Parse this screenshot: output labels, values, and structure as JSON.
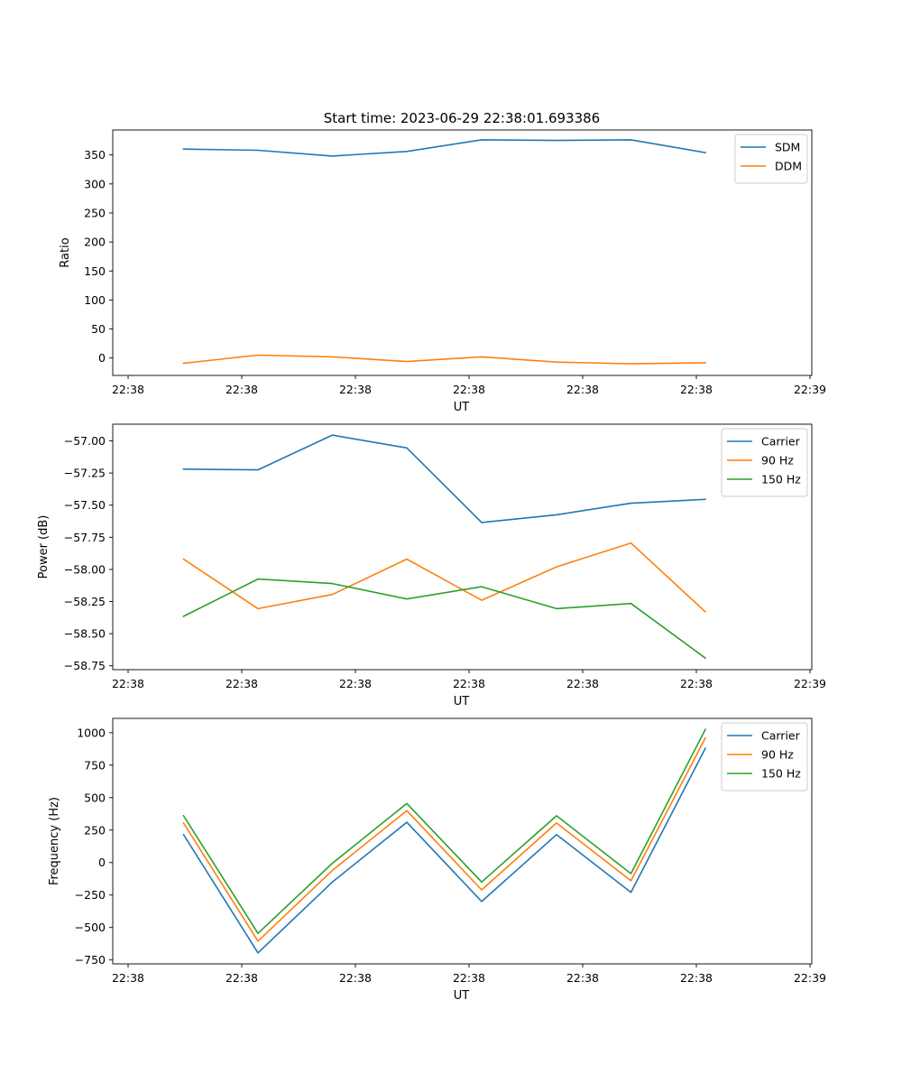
{
  "figure": {
    "title": "Start time: 2023-06-29 22:38:01.693386"
  },
  "chart_data": [
    {
      "type": "line",
      "title": "Start time: 2023-06-29 22:38:01.693386",
      "xlabel": "UT",
      "ylabel": "Ratio",
      "x_tick_labels": [
        "22:38",
        "22:38",
        "22:38",
        "22:38",
        "22:38",
        "22:38",
        "22:39"
      ],
      "ylim": [
        -30,
        393
      ],
      "yticks": [
        0,
        50,
        100,
        150,
        200,
        250,
        300,
        350
      ],
      "ytick_labels": [
        "0",
        "50",
        "100",
        "150",
        "200",
        "250",
        "300",
        "350"
      ],
      "legend_position": "top-right",
      "grid": false,
      "series": [
        {
          "name": "SDM",
          "color": "#1f77b4",
          "values": [
            360,
            358,
            348,
            356,
            376,
            375,
            376,
            354
          ]
        },
        {
          "name": "DDM",
          "color": "#ff7f0e",
          "values": [
            -9,
            5,
            2,
            -6,
            2,
            -7,
            -10,
            -8
          ]
        }
      ]
    },
    {
      "type": "line",
      "xlabel": "UT",
      "ylabel": "Power (dB)",
      "x_tick_labels": [
        "22:38",
        "22:38",
        "22:38",
        "22:38",
        "22:38",
        "22:38",
        "22:39"
      ],
      "ylim": [
        -58.78,
        -56.87
      ],
      "yticks": [
        -58.75,
        -58.5,
        -58.25,
        -58.0,
        -57.75,
        -57.5,
        -57.25,
        -57.0
      ],
      "ytick_labels": [
        "−58.75",
        "−58.50",
        "−58.25",
        "−58.00",
        "−57.75",
        "−57.50",
        "−57.25",
        "−57.00"
      ],
      "legend_position": "top-right",
      "grid": false,
      "series": [
        {
          "name": "Carrier",
          "color": "#1f77b4",
          "values": [
            -57.22,
            -57.225,
            -56.955,
            -57.055,
            -57.635,
            -57.575,
            -57.485,
            -57.455
          ]
        },
        {
          "name": "90 Hz",
          "color": "#ff7f0e",
          "values": [
            -57.92,
            -58.305,
            -58.195,
            -57.92,
            -58.24,
            -57.98,
            -57.795,
            -58.33
          ]
        },
        {
          "name": "150 Hz",
          "color": "#2ca02c",
          "values": [
            -58.365,
            -58.075,
            -58.11,
            -58.23,
            -58.135,
            -58.305,
            -58.265,
            -58.69
          ]
        }
      ]
    },
    {
      "type": "line",
      "xlabel": "UT",
      "ylabel": "Frequency (Hz)",
      "x_tick_labels": [
        "22:38",
        "22:38",
        "22:38",
        "22:38",
        "22:38",
        "22:38",
        "22:39"
      ],
      "ylim": [
        -780,
        1110
      ],
      "yticks": [
        -750,
        -500,
        -250,
        0,
        250,
        500,
        750,
        1000
      ],
      "ytick_labels": [
        "−750",
        "−500",
        "−250",
        "0",
        "250",
        "500",
        "750",
        "1000"
      ],
      "legend_position": "top-right",
      "grid": false,
      "series": [
        {
          "name": "Carrier",
          "color": "#1f77b4",
          "values": [
            215,
            -695,
            -150,
            310,
            -300,
            215,
            -230,
            880
          ]
        },
        {
          "name": "90 Hz",
          "color": "#ff7f0e",
          "values": [
            305,
            -605,
            -60,
            400,
            -210,
            305,
            -140,
            960
          ]
        },
        {
          "name": "150 Hz",
          "color": "#2ca02c",
          "values": [
            360,
            -545,
            -5,
            455,
            -150,
            360,
            -85,
            1025
          ]
        }
      ]
    }
  ]
}
